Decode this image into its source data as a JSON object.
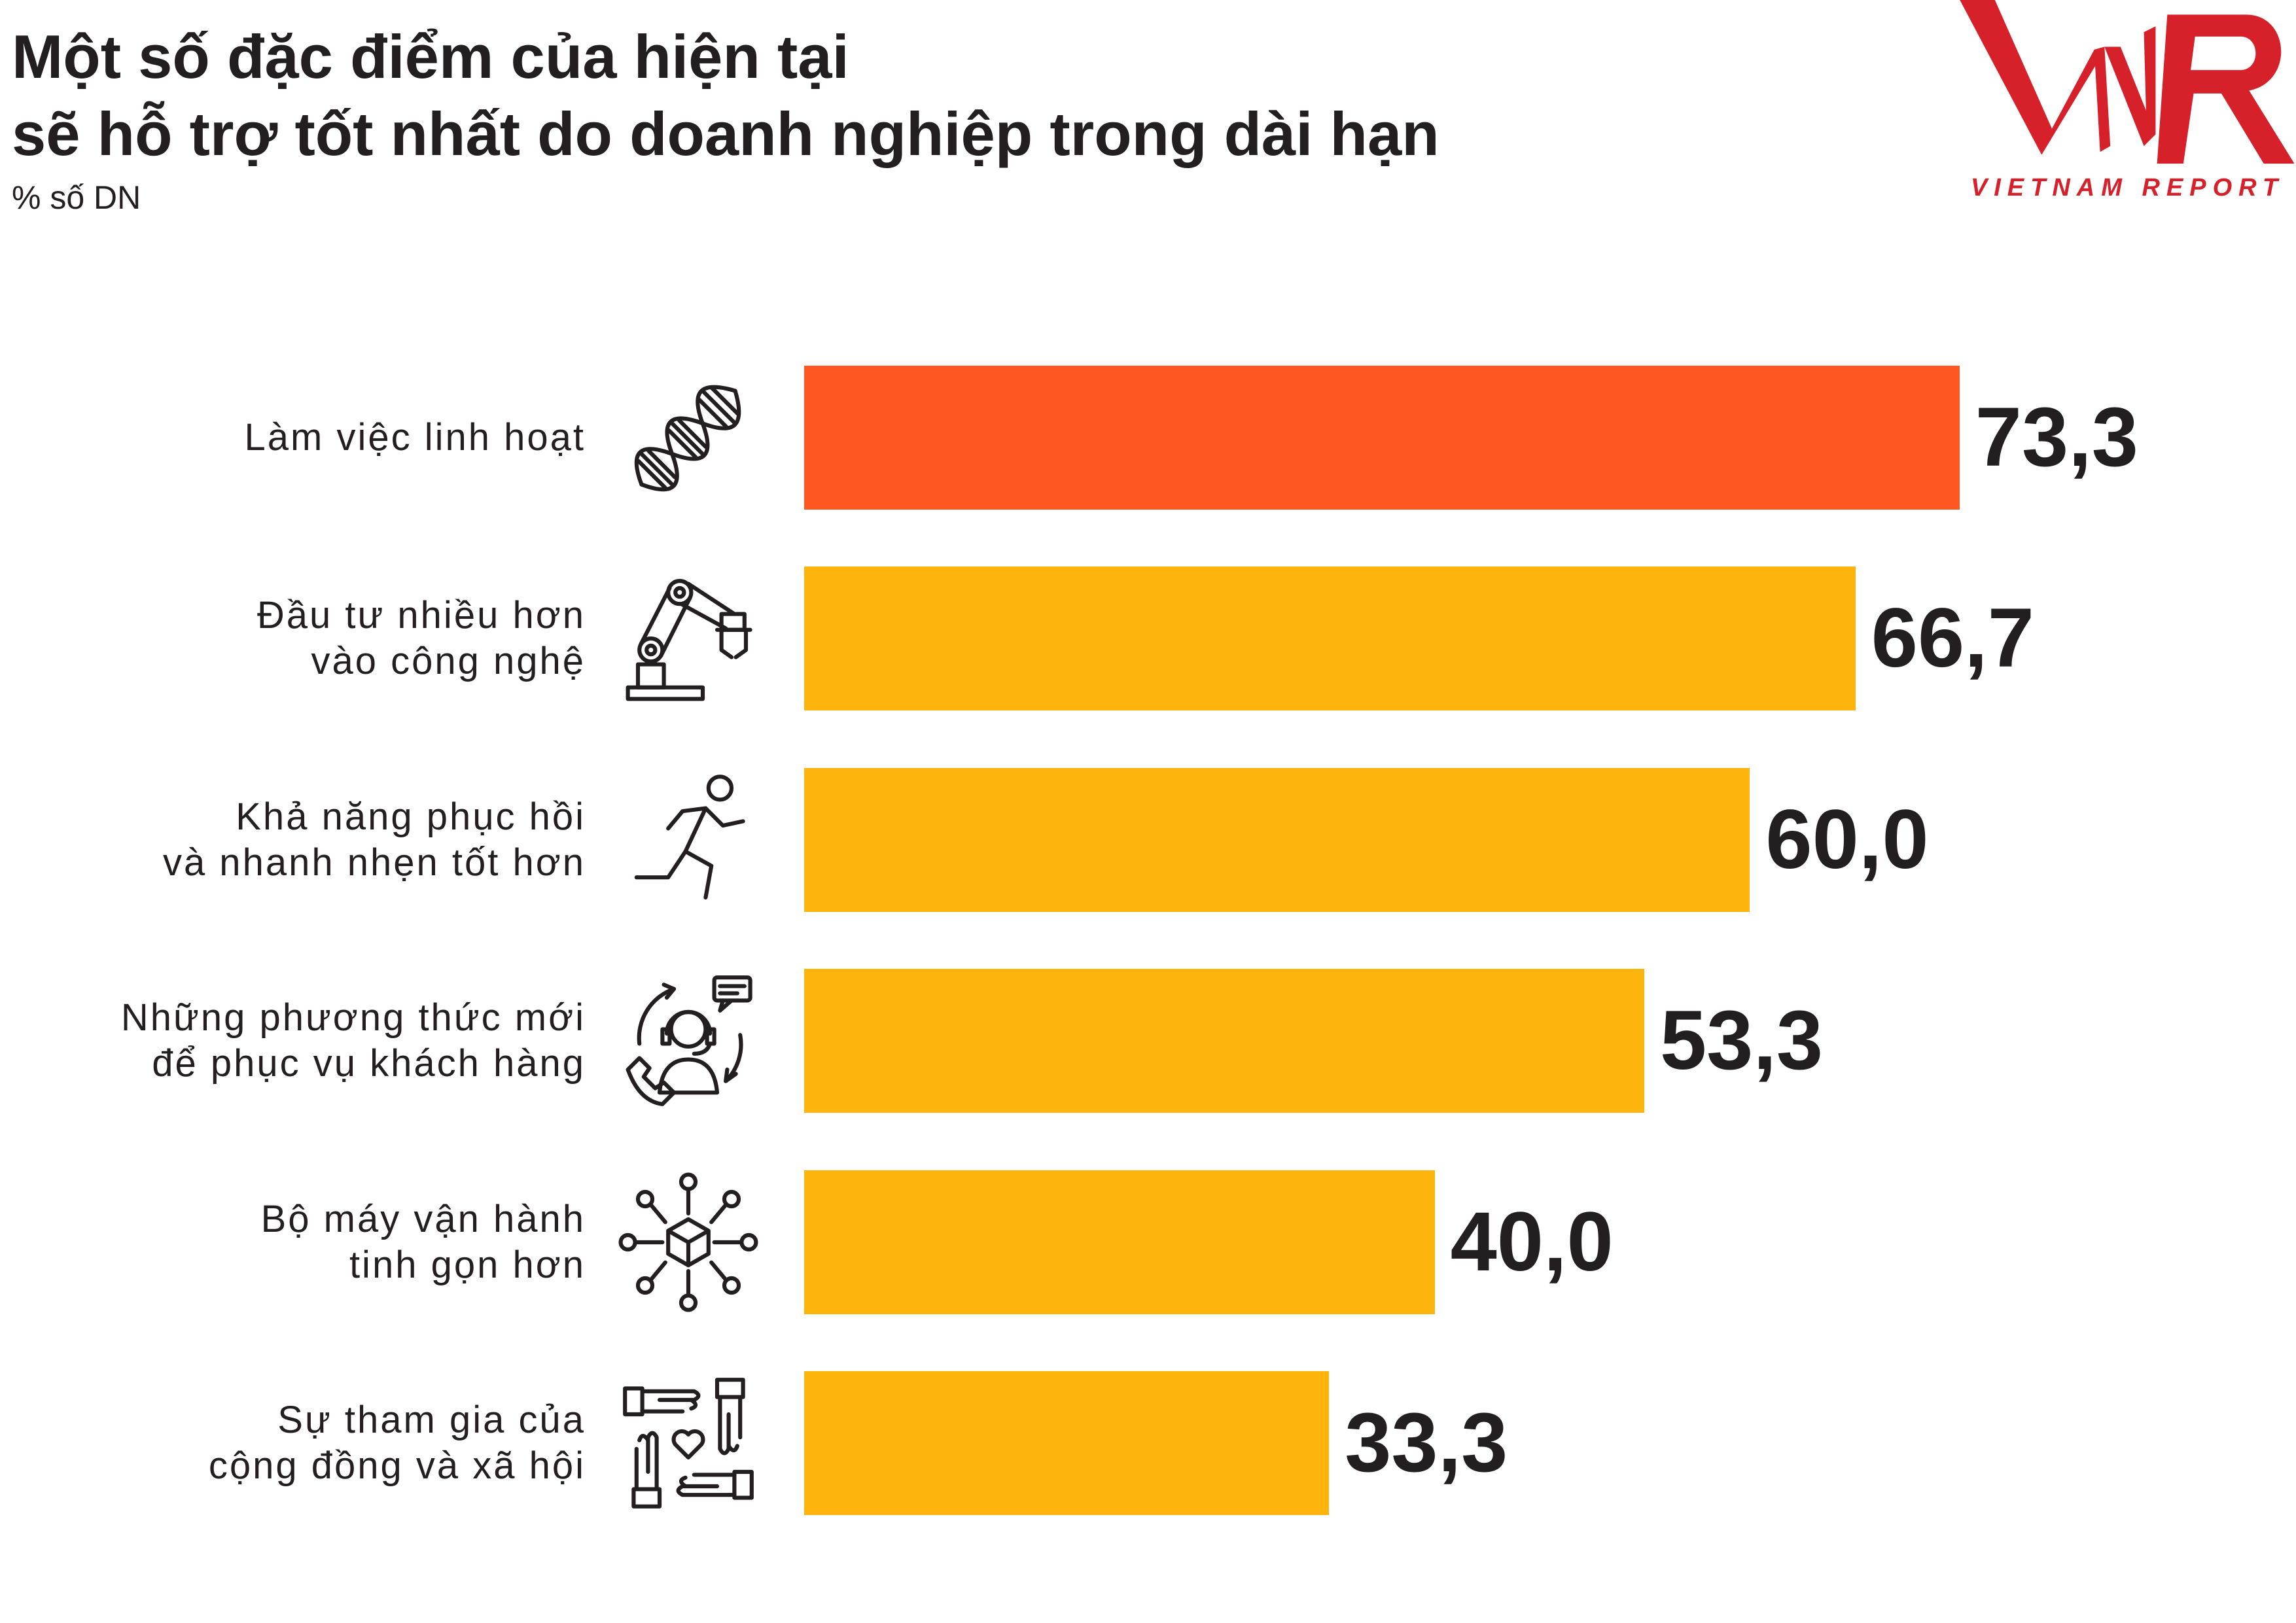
{
  "chart_data": {
    "type": "bar",
    "orientation": "horizontal",
    "title_lines": [
      "Một số đặc điểm của hiện tại",
      "sẽ hỗ trợ tốt nhất do doanh nghiệp trong dài hạn"
    ],
    "subtitle": "% số DN",
    "categories": [
      "Làm việc linh hoạt",
      "Đầu tư nhiều hơn\nvào công nghệ",
      "Khả năng phục hồi\nvà nhanh nhẹn tốt hơn",
      "Những phương thức mới\nđể phục vụ khách hàng",
      "Bộ máy vận hành\ntinh gọn hơn",
      "Sự tham gia của\ncộng đồng và xã hội"
    ],
    "values": [
      73.3,
      66.7,
      60.0,
      53.3,
      40.0,
      33.3
    ],
    "value_labels": [
      "73,3",
      "66,7",
      "60,0",
      "53,3",
      "40,0",
      "33,3"
    ],
    "icons": [
      "dna-icon",
      "robot-arm-icon",
      "running-person-icon",
      "customer-service-icon",
      "network-cube-icon",
      "hands-heart-icon"
    ],
    "highlight_index": 0,
    "grid": false,
    "legend": "none"
  },
  "colors": {
    "highlight_bar": "#FF5722",
    "bar": "#FDB40C",
    "text": "#231F20",
    "brand_red": "#D6202A"
  },
  "logo": {
    "tagline": "VIETNAM REPORT"
  }
}
